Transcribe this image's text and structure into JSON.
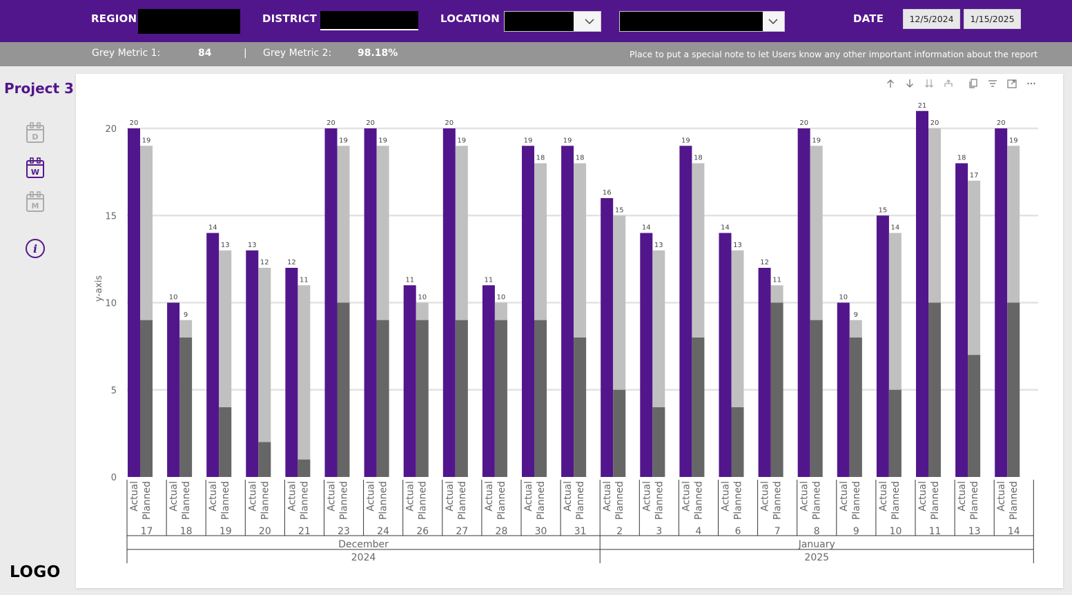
{
  "filters": {
    "region_label": "REGION",
    "district_label": "DISTRICT",
    "location_label": "LOCATION",
    "date_label": "DATE",
    "date_start": "12/5/2024",
    "date_end": "1/15/2025"
  },
  "metrics": {
    "metric1_label": "Grey Metric 1:",
    "metric1_value": "84",
    "separator": "|",
    "metric2_label": "Grey Metric 2:",
    "metric2_value": "98.18%",
    "note": "Place to put a special note to let Users know any other important information about the report"
  },
  "sidebar": {
    "project_title": "Project 3",
    "items": [
      {
        "icon": "calendar-day-icon",
        "letter": "D",
        "active": false
      },
      {
        "icon": "calendar-week-icon",
        "letter": "W",
        "active": true
      },
      {
        "icon": "calendar-month-icon",
        "letter": "M",
        "active": false
      },
      {
        "icon": "info-icon",
        "letter": "i",
        "active": false
      }
    ],
    "logo": "LOGO"
  },
  "colors": {
    "brand": "#52168c",
    "planned_light": "#c0c0c0",
    "planned_dark": "#666666",
    "metric_bar": "#959595"
  },
  "chart_data": {
    "type": "bar",
    "ylabel": "y-axis",
    "ylim": [
      0,
      20
    ],
    "yticks": [
      0,
      5,
      10,
      15,
      20
    ],
    "grid": true,
    "series_labels": [
      "Actual",
      "Planned"
    ],
    "days": [
      "17",
      "18",
      "19",
      "20",
      "21",
      "23",
      "24",
      "26",
      "27",
      "28",
      "30",
      "31",
      "2",
      "3",
      "4",
      "6",
      "7",
      "8",
      "9",
      "10",
      "11",
      "13",
      "14"
    ],
    "actual": [
      20,
      10,
      14,
      13,
      12,
      20,
      20,
      11,
      20,
      11,
      19,
      19,
      16,
      14,
      19,
      14,
      12,
      20,
      10,
      15,
      21,
      18,
      20
    ],
    "planned": [
      19,
      9,
      13,
      12,
      11,
      19,
      19,
      10,
      19,
      10,
      18,
      18,
      15,
      13,
      18,
      13,
      11,
      19,
      9,
      14,
      20,
      17,
      19
    ],
    "planned_dark_portion": [
      9,
      8,
      4,
      2,
      1,
      10,
      9,
      9,
      9,
      9,
      9,
      8,
      5,
      4,
      8,
      4,
      10,
      9,
      8,
      5,
      10,
      7,
      10
    ],
    "months": [
      {
        "month": "December",
        "year": "2024",
        "count": 12
      },
      {
        "month": "January",
        "year": "2025",
        "count": 11
      }
    ]
  }
}
